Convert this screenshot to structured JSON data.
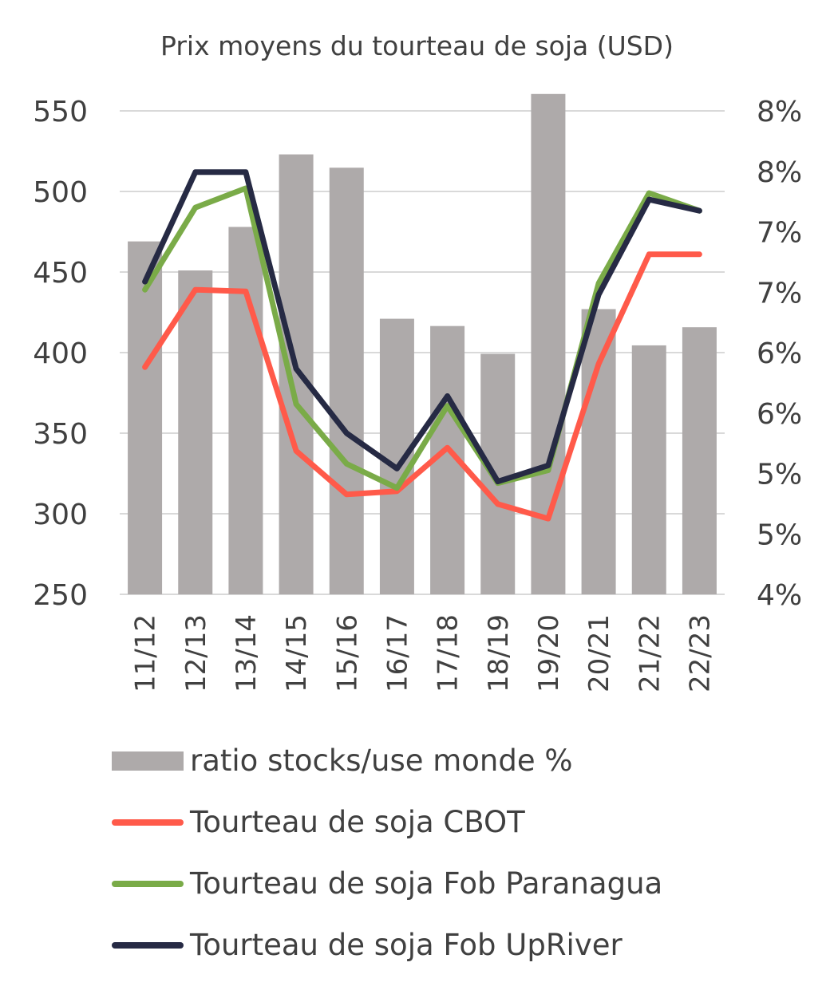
{
  "chart_data": {
    "type": "bar+line",
    "title": "Prix moyens du tourteau de soja (USD)",
    "categories": [
      "11/12",
      "12/13",
      "13/14",
      "14/15",
      "15/16",
      "16/17",
      "17/18",
      "18/19",
      "19/20",
      "20/21",
      "21/22",
      "22/23"
    ],
    "y_left": {
      "min": 250,
      "max": 550,
      "step": 50,
      "ticks": [
        "250",
        "300",
        "350",
        "400",
        "450",
        "500",
        "550"
      ]
    },
    "y_right": {
      "min": 4,
      "max": 8,
      "ticks": [
        "4%",
        "5%",
        "5%",
        "6%",
        "6%",
        "7%",
        "7%",
        "8%",
        "8%"
      ]
    },
    "grid": true,
    "legend_position": "bottom",
    "bars": {
      "name": "ratio stocks/use monde %",
      "axis": "right",
      "color": "#aeaaaa",
      "values": [
        6.92,
        6.68,
        7.04,
        7.64,
        7.53,
        6.28,
        6.22,
        5.99,
        8.14,
        6.36,
        6.06,
        6.21
      ]
    },
    "series": [
      {
        "name": "Tourteau de soja CBOT",
        "axis": "left",
        "color": "#ff5a4a",
        "values": [
          391,
          439,
          438,
          339,
          312,
          314,
          341,
          306,
          297,
          393,
          461,
          461
        ]
      },
      {
        "name": "Tourteau de soja Fob Paranagua",
        "axis": "left",
        "color": "#7aab48",
        "values": [
          439,
          490,
          502,
          368,
          331,
          316,
          367,
          319,
          327,
          443,
          499,
          488
        ]
      },
      {
        "name": "Tourteau de soja Fob UpRiver",
        "axis": "left",
        "color": "#262a44",
        "values": [
          444,
          512,
          512,
          390,
          350,
          328,
          373,
          320,
          330,
          436,
          495,
          488
        ]
      }
    ]
  }
}
